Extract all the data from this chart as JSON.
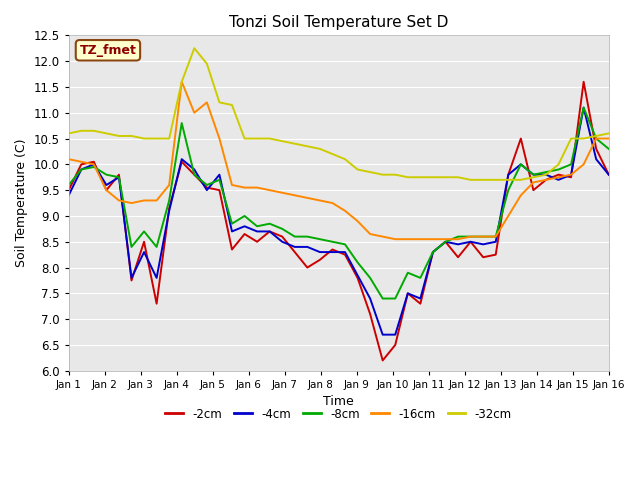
{
  "title": "Tonzi Soil Temperature Set D",
  "xlabel": "Time",
  "ylabel": "Soil Temperature (C)",
  "ylim": [
    6.0,
    12.5
  ],
  "annotation": "TZ_fmet",
  "series_colors": {
    "-2cm": "#cc0000",
    "-4cm": "#0000cc",
    "-8cm": "#00aa00",
    "-16cm": "#ff8800",
    "-32cm": "#cccc00"
  },
  "xtick_labels": [
    "Jan 1",
    "Jan 2",
    "Jan 3",
    "Jan 4",
    "Jan 5",
    "Jan 6",
    "Jan 7",
    "Jan 8",
    "Jan 9",
    "Jan 10",
    "Jan 11",
    "Jan 12",
    "Jan 13",
    "Jan 14",
    "Jan 15",
    "Jan 16"
  ],
  "fig_bg": "#ffffff",
  "plot_bg": "#e8e8e8",
  "grid_color": "#ffffff",
  "d_2cm": [
    9.5,
    10.0,
    10.05,
    9.5,
    9.8,
    7.75,
    8.5,
    7.3,
    9.15,
    10.05,
    9.8,
    9.55,
    9.5,
    8.35,
    8.65,
    8.5,
    8.7,
    8.6,
    8.3,
    8.0,
    8.15,
    8.35,
    8.25,
    7.8,
    7.1,
    6.2,
    6.5,
    7.5,
    7.3,
    8.3,
    8.5,
    8.2,
    8.5,
    8.2,
    8.25,
    9.8,
    10.5,
    9.5,
    9.7,
    9.8,
    9.75,
    11.6,
    10.3,
    9.8
  ],
  "d_4cm": [
    9.4,
    9.9,
    10.0,
    9.6,
    9.75,
    7.8,
    8.3,
    7.8,
    9.1,
    10.1,
    9.9,
    9.5,
    9.8,
    8.7,
    8.8,
    8.7,
    8.7,
    8.5,
    8.4,
    8.4,
    8.3,
    8.3,
    8.3,
    7.85,
    7.4,
    6.7,
    6.7,
    7.5,
    7.4,
    8.3,
    8.5,
    8.45,
    8.5,
    8.45,
    8.5,
    9.8,
    10.0,
    9.8,
    9.8,
    9.7,
    9.8,
    11.1,
    10.1,
    9.8
  ],
  "d_8cm": [
    9.6,
    9.9,
    9.95,
    9.8,
    9.75,
    8.4,
    8.7,
    8.4,
    9.3,
    10.8,
    9.8,
    9.6,
    9.7,
    8.85,
    9.0,
    8.8,
    8.85,
    8.75,
    8.6,
    8.6,
    8.55,
    8.5,
    8.45,
    8.1,
    7.8,
    7.4,
    7.4,
    7.9,
    7.8,
    8.3,
    8.5,
    8.6,
    8.6,
    8.6,
    8.6,
    9.5,
    10.0,
    9.8,
    9.85,
    9.9,
    10.0,
    11.1,
    10.5,
    10.3
  ],
  "d_16cm": [
    10.1,
    10.05,
    10.0,
    9.5,
    9.3,
    9.25,
    9.3,
    9.3,
    9.6,
    11.6,
    11.0,
    11.2,
    10.5,
    9.6,
    9.55,
    9.55,
    9.5,
    9.45,
    9.4,
    9.35,
    9.3,
    9.25,
    9.1,
    8.9,
    8.65,
    8.6,
    8.55,
    8.55,
    8.55,
    8.55,
    8.55,
    8.55,
    8.6,
    8.6,
    8.6,
    9.0,
    9.4,
    9.65,
    9.7,
    9.75,
    9.8,
    10.0,
    10.5,
    10.5
  ],
  "d_32cm": [
    10.6,
    10.65,
    10.65,
    10.6,
    10.55,
    10.55,
    10.5,
    10.5,
    10.5,
    11.6,
    12.25,
    11.95,
    11.2,
    11.15,
    10.5,
    10.5,
    10.5,
    10.45,
    10.4,
    10.35,
    10.3,
    10.2,
    10.1,
    9.9,
    9.85,
    9.8,
    9.8,
    9.75,
    9.75,
    9.75,
    9.75,
    9.75,
    9.7,
    9.7,
    9.7,
    9.7,
    9.7,
    9.75,
    9.8,
    10.0,
    10.5,
    10.5,
    10.55,
    10.6
  ]
}
